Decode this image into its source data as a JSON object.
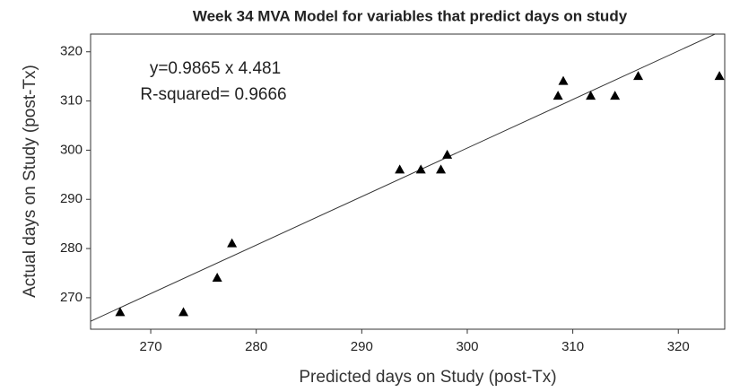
{
  "chart_data": {
    "type": "scatter",
    "title": "Week 34 MVA Model for variables that predict days on study",
    "x_label": "Predicted days on Study (post-Tx)",
    "y_label": "Actual days on Study (post-Tx)",
    "annotations": [
      "y=0.9865 x 4.481",
      "R-squared= 0.9666"
    ],
    "trendline": {
      "slope": 0.9865,
      "intercept": 4.481
    },
    "color": "#000000",
    "x": [
      267.1,
      273.1,
      276.3,
      277.7,
      293.6,
      295.6,
      297.5,
      298.1,
      308.6,
      309.1,
      311.7,
      314.0,
      316.2,
      323.9
    ],
    "values": [
      267,
      267,
      274,
      281,
      296,
      296,
      296,
      299,
      311,
      314,
      311,
      311,
      315,
      315
    ],
    "xlim": [
      264.3,
      324.4
    ],
    "xticks": [
      270,
      280,
      290,
      300,
      310,
      320
    ],
    "ylim": [
      263.6,
      323.6
    ],
    "yticks": [
      270,
      280,
      290,
      300,
      310,
      320
    ],
    "grid": false
  }
}
